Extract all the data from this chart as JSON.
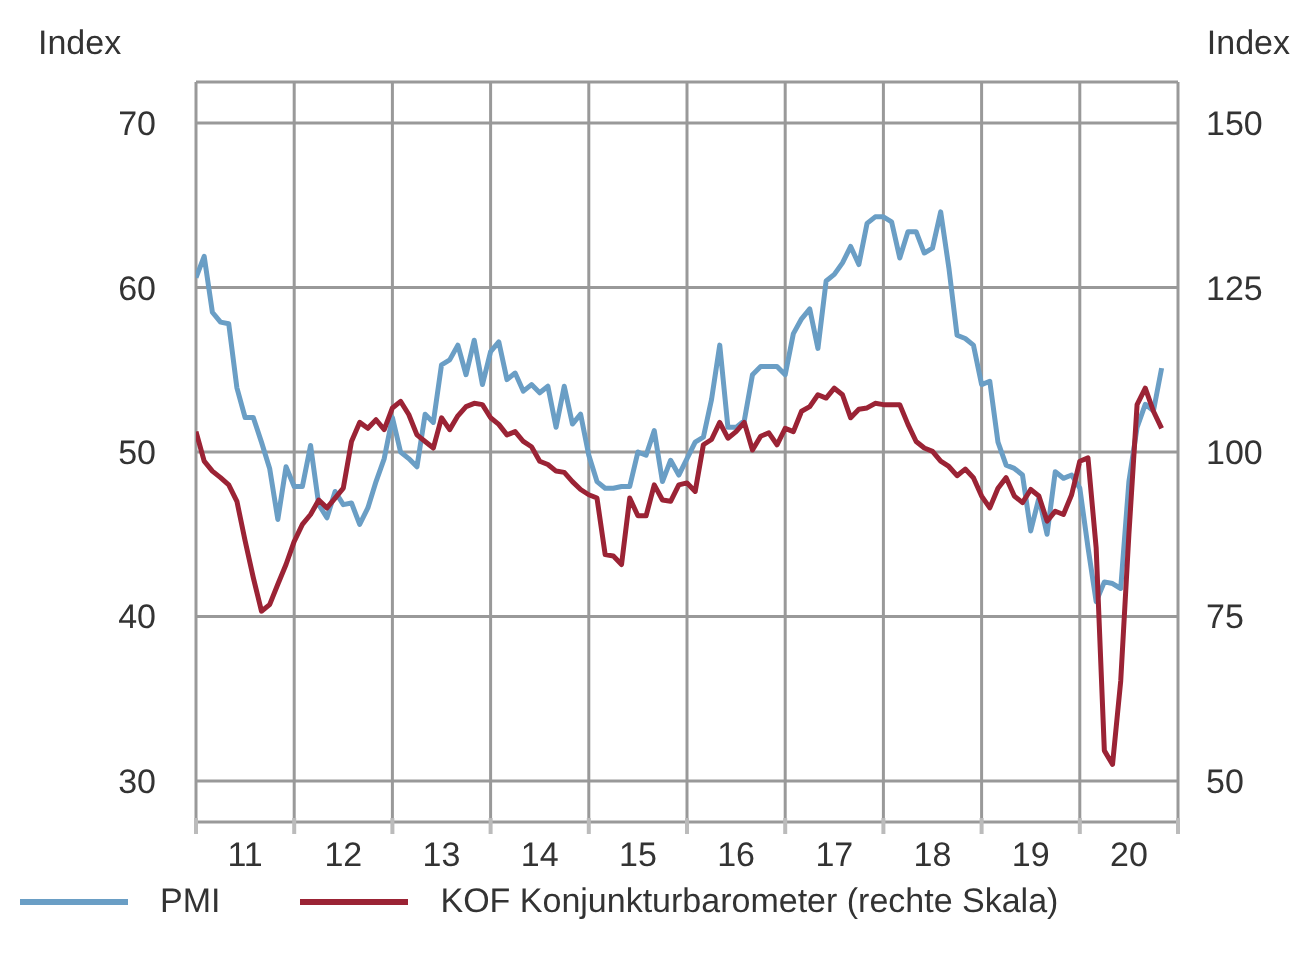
{
  "chart_data": {
    "type": "line",
    "ylabel": "Index",
    "y2label": "Index",
    "x": [
      "2011-01",
      "2011-02",
      "2011-03",
      "2011-04",
      "2011-05",
      "2011-06",
      "2011-07",
      "2011-08",
      "2011-09",
      "2011-10",
      "2011-11",
      "2011-12",
      "2012-01",
      "2012-02",
      "2012-03",
      "2012-04",
      "2012-05",
      "2012-06",
      "2012-07",
      "2012-08",
      "2012-09",
      "2012-10",
      "2012-11",
      "2012-12",
      "2013-01",
      "2013-02",
      "2013-03",
      "2013-04",
      "2013-05",
      "2013-06",
      "2013-07",
      "2013-08",
      "2013-09",
      "2013-10",
      "2013-11",
      "2013-12",
      "2014-01",
      "2014-02",
      "2014-03",
      "2014-04",
      "2014-05",
      "2014-06",
      "2014-07",
      "2014-08",
      "2014-09",
      "2014-10",
      "2014-11",
      "2014-12",
      "2015-01",
      "2015-02",
      "2015-03",
      "2015-04",
      "2015-05",
      "2015-06",
      "2015-07",
      "2015-08",
      "2015-09",
      "2015-10",
      "2015-11",
      "2015-12",
      "2016-01",
      "2016-02",
      "2016-03",
      "2016-04",
      "2016-05",
      "2016-06",
      "2016-07",
      "2016-08",
      "2016-09",
      "2016-10",
      "2016-11",
      "2016-12",
      "2017-01",
      "2017-02",
      "2017-03",
      "2017-04",
      "2017-05",
      "2017-06",
      "2017-07",
      "2017-08",
      "2017-09",
      "2017-10",
      "2017-11",
      "2017-12",
      "2018-01",
      "2018-02",
      "2018-03",
      "2018-04",
      "2018-05",
      "2018-06",
      "2018-07",
      "2018-08",
      "2018-09",
      "2018-10",
      "2018-11",
      "2018-12",
      "2019-01",
      "2019-02",
      "2019-03",
      "2019-04",
      "2019-05",
      "2019-06",
      "2019-07",
      "2019-08",
      "2019-09",
      "2019-10",
      "2019-11",
      "2019-12",
      "2020-01",
      "2020-02",
      "2020-03",
      "2020-04",
      "2020-05",
      "2020-06",
      "2020-07",
      "2020-08",
      "2020-09",
      "2020-10",
      "2020-11"
    ],
    "series": [
      {
        "name": "PMI",
        "color": "#6a9ec5",
        "values": [
          60.6,
          61.9,
          58.5,
          57.9,
          57.8,
          53.9,
          52.1,
          52.1,
          50.6,
          49.0,
          45.9,
          49.1,
          47.9,
          47.9,
          50.4,
          46.8,
          46.0,
          47.6,
          46.8,
          46.9,
          45.6,
          46.6,
          48.2,
          49.6,
          52.1,
          50.0,
          49.6,
          49.1,
          52.3,
          51.8,
          55.3,
          55.6,
          56.5,
          54.7,
          56.8,
          54.1,
          56.1,
          56.7,
          54.4,
          54.8,
          53.7,
          54.1,
          53.6,
          54.0,
          51.5,
          54.0,
          51.7,
          52.3,
          49.8,
          48.2,
          47.8,
          47.8,
          47.9,
          47.9,
          50.0,
          49.8,
          51.3,
          48.2,
          49.5,
          48.6,
          49.6,
          50.6,
          50.9,
          53.2,
          56.5,
          51.5,
          51.5,
          51.9,
          54.7,
          55.2,
          55.2,
          55.2,
          54.7,
          57.2,
          58.1,
          58.7,
          56.3,
          60.4,
          60.8,
          61.5,
          62.5,
          61.4,
          63.9,
          64.3,
          64.3,
          64.0,
          61.8,
          63.4,
          63.4,
          62.1,
          62.4,
          64.6,
          61.2,
          57.1,
          56.9,
          56.5,
          54.1,
          54.3,
          50.6,
          49.2,
          49.0,
          48.6,
          45.2,
          47.2,
          45.0,
          48.8,
          48.4,
          48.6,
          47.8,
          44.2,
          40.9,
          42.1,
          42.0,
          41.7,
          48.2,
          51.5,
          52.9,
          52.5,
          55.1
        ]
      },
      {
        "name": "KOF Konjunkturbarometer (rechte Skala)",
        "color": "#9b2335",
        "axis": "y2",
        "values": [
          103.1,
          98.6,
          97.1,
          96.1,
          95.0,
          92.5,
          86.5,
          80.9,
          75.8,
          76.8,
          79.9,
          82.9,
          86.4,
          89.0,
          90.5,
          92.7,
          91.5,
          93.0,
          94.5,
          101.6,
          104.5,
          103.6,
          104.9,
          103.4,
          106.7,
          107.7,
          105.7,
          102.6,
          101.6,
          100.6,
          105.2,
          103.4,
          105.5,
          106.9,
          107.4,
          107.2,
          105.2,
          104.2,
          102.6,
          103.1,
          101.6,
          100.8,
          98.6,
          98.1,
          97.1,
          96.9,
          95.5,
          94.3,
          93.5,
          93.0,
          84.4,
          84.2,
          82.9,
          93.0,
          90.3,
          90.3,
          95.0,
          92.7,
          92.5,
          95.0,
          95.3,
          94.0,
          101.1,
          101.9,
          104.5,
          102.1,
          103.1,
          104.5,
          100.3,
          102.4,
          102.9,
          101.1,
          103.6,
          103.1,
          106.2,
          106.9,
          108.7,
          108.2,
          109.7,
          108.7,
          105.2,
          106.5,
          106.7,
          107.4,
          107.2,
          107.2,
          107.2,
          104.2,
          101.6,
          100.6,
          100.1,
          98.6,
          97.8,
          96.4,
          97.4,
          96.1,
          93.3,
          91.5,
          94.5,
          96.1,
          93.3,
          92.3,
          94.3,
          93.3,
          89.5,
          91.0,
          90.5,
          93.5,
          98.6,
          99.1,
          85.4,
          54.6,
          52.5,
          65.2,
          87.5,
          107.2,
          109.7,
          106.2,
          103.6
        ]
      }
    ],
    "xlim": [
      "2011-01",
      "2021-01"
    ],
    "xticks": [
      {
        "value": "2011-01",
        "label": null
      },
      {
        "value": "2011-07",
        "label": "11"
      },
      {
        "value": "2012-01",
        "label": null
      },
      {
        "value": "2012-07",
        "label": "12"
      },
      {
        "value": "2013-01",
        "label": null
      },
      {
        "value": "2013-07",
        "label": "13"
      },
      {
        "value": "2014-01",
        "label": null
      },
      {
        "value": "2014-07",
        "label": "14"
      },
      {
        "value": "2015-01",
        "label": null
      },
      {
        "value": "2015-07",
        "label": "15"
      },
      {
        "value": "2016-01",
        "label": null
      },
      {
        "value": "2016-07",
        "label": "16"
      },
      {
        "value": "2017-01",
        "label": null
      },
      {
        "value": "2017-07",
        "label": "17"
      },
      {
        "value": "2018-01",
        "label": null
      },
      {
        "value": "2018-07",
        "label": "18"
      },
      {
        "value": "2019-01",
        "label": null
      },
      {
        "value": "2019-07",
        "label": "19"
      },
      {
        "value": "2020-01",
        "label": null
      },
      {
        "value": "2020-07",
        "label": "20"
      },
      {
        "value": "2021-01",
        "label": null
      }
    ],
    "ylim": [
      27.5,
      72.5
    ],
    "yticks": [
      30,
      40,
      50,
      60,
      70
    ],
    "y2lim": [
      43.75,
      156.25
    ],
    "y2ticks": [
      50,
      75,
      100,
      125,
      150
    ],
    "grid": true,
    "legend": "bottom",
    "marker": "none",
    "line_style": "solid"
  }
}
